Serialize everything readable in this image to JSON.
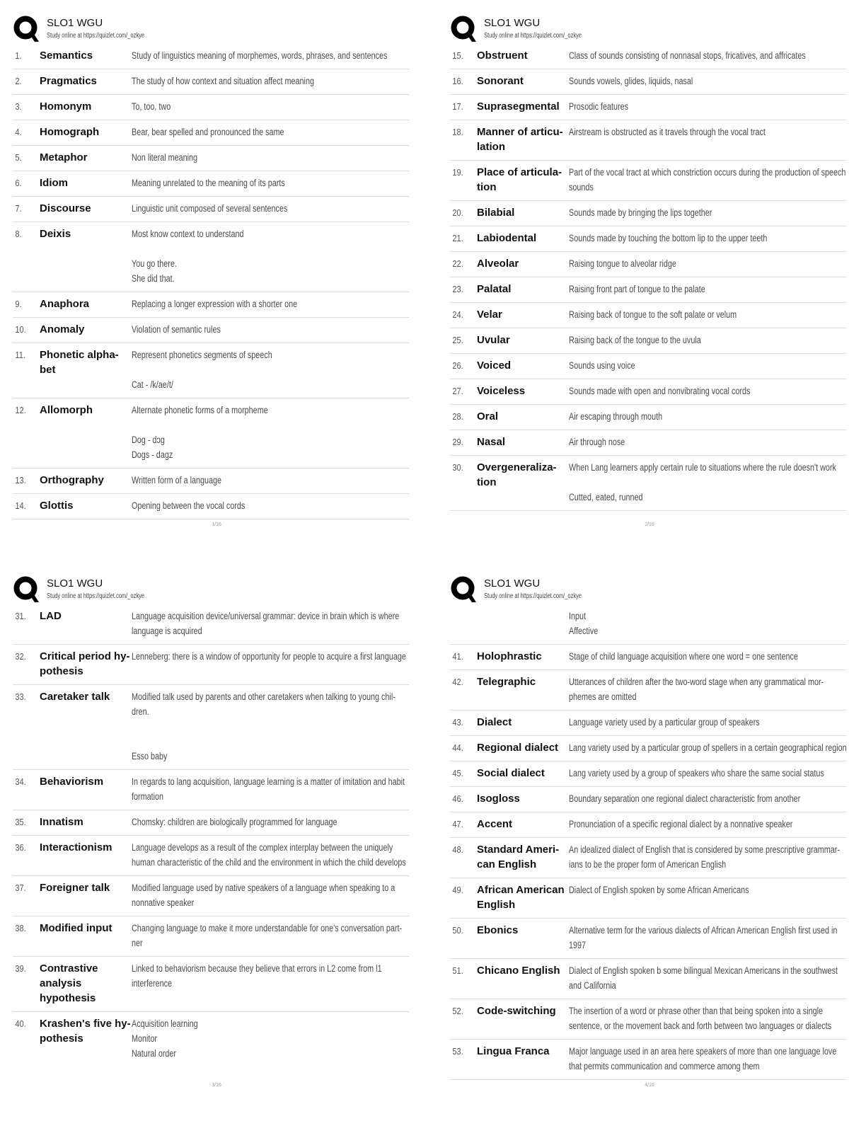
{
  "header": {
    "title": "SLO1 WGU",
    "subtitle": "Study online at https://quizlet.com/_ozkye",
    "logo_icon": "quizlet-q-logo"
  },
  "pages": [
    {
      "page_number": "1/16",
      "cards": [
        {
          "num": "1.",
          "term": [
            "Semantics"
          ],
          "definition": [
            "Study of linguistics meaning of morphemes, words, phrases, and sentences"
          ]
        },
        {
          "num": "2.",
          "term": [
            "Pragmatics"
          ],
          "definition": [
            "The study of how context and situation affect meaning"
          ]
        },
        {
          "num": "3.",
          "term": [
            "Homonym"
          ],
          "definition": [
            "To, too, two"
          ]
        },
        {
          "num": "4.",
          "term": [
            "Homograph"
          ],
          "definition": [
            "Bear, bear spelled and pronounced the same"
          ]
        },
        {
          "num": "5.",
          "term": [
            "Metaphor"
          ],
          "definition": [
            "Non literal meaning"
          ]
        },
        {
          "num": "6.",
          "term": [
            "Idiom"
          ],
          "definition": [
            "Meaning unrelated to the meaning of its parts"
          ]
        },
        {
          "num": "7.",
          "term": [
            "Discourse"
          ],
          "definition": [
            "Linguistic unit composed of several sentences"
          ]
        },
        {
          "num": "8.",
          "term": [
            "Deixis"
          ],
          "definition": [
            "Most know context to understand",
            "",
            "You go there.",
            "She did that."
          ]
        },
        {
          "num": "9.",
          "term": [
            "Anaphora"
          ],
          "definition": [
            "Replacing a longer expression with a shorter one"
          ]
        },
        {
          "num": "10.",
          "term": [
            "Anomaly"
          ],
          "definition": [
            "Violation of semantic rules"
          ]
        },
        {
          "num": "11.",
          "term": [
            "Phonetic alpha-",
            "bet"
          ],
          "definition": [
            "Represent phonetics segments of speech",
            "",
            "Cat - /k/ae/t/"
          ]
        },
        {
          "num": "12.",
          "term": [
            "Allomorph"
          ],
          "definition": [
            "Alternate phonetic forms of a morpheme",
            "",
            "Dog - dɔg",
            "Dogs - dagz"
          ]
        },
        {
          "num": "13.",
          "term": [
            "Orthography"
          ],
          "definition": [
            "Written form of a language"
          ]
        },
        {
          "num": "14.",
          "term": [
            "Glottis"
          ],
          "definition": [
            "Opening between the vocal cords"
          ]
        }
      ]
    },
    {
      "page_number": "2/16",
      "cards": [
        {
          "num": "15.",
          "term": [
            "Obstruent"
          ],
          "definition": [
            "Class of sounds consisting of nonnasal stops, fricatives, and affricates"
          ]
        },
        {
          "num": "16.",
          "term": [
            "Sonorant"
          ],
          "definition": [
            "Sounds vowels, glides, liquids, nasal"
          ]
        },
        {
          "num": "17.",
          "term": [
            "Suprasegmental"
          ],
          "definition": [
            "Prosodic features"
          ]
        },
        {
          "num": "18.",
          "term": [
            "Manner of articu-",
            "lation"
          ],
          "definition": [
            "Airstream is obstructed as it travels through the vocal tract"
          ]
        },
        {
          "num": "19.",
          "term": [
            "Place of articula-",
            "tion"
          ],
          "definition": [
            "Part of the vocal tract at which constriction occurs during the production of speech",
            "sounds"
          ]
        },
        {
          "num": "20.",
          "term": [
            "Bilabial"
          ],
          "definition": [
            "Sounds made by bringing the lips together"
          ]
        },
        {
          "num": "21.",
          "term": [
            "Labiodental"
          ],
          "definition": [
            "Sounds made by touching the bottom lip to the upper teeth"
          ]
        },
        {
          "num": "22.",
          "term": [
            "Alveolar"
          ],
          "definition": [
            "Raising tongue to alveolar ridge"
          ]
        },
        {
          "num": "23.",
          "term": [
            "Palatal"
          ],
          "definition": [
            "Raising front part of tongue to the palate"
          ]
        },
        {
          "num": "24.",
          "term": [
            "Velar"
          ],
          "definition": [
            "Raising back of tongue to the soft palate or velum"
          ]
        },
        {
          "num": "25.",
          "term": [
            "Uvular"
          ],
          "definition": [
            "Raising back of the tongue to the uvula"
          ]
        },
        {
          "num": "26.",
          "term": [
            "Voiced"
          ],
          "definition": [
            "Sounds using voice"
          ]
        },
        {
          "num": "27.",
          "term": [
            "Voiceless"
          ],
          "definition": [
            "Sounds made with open and nonvibrating vocal cords"
          ]
        },
        {
          "num": "28.",
          "term": [
            "Oral"
          ],
          "definition": [
            "Air escaping through mouth"
          ]
        },
        {
          "num": "29.",
          "term": [
            "Nasal"
          ],
          "definition": [
            "Air through nose"
          ]
        },
        {
          "num": "30.",
          "term": [
            "Overgeneraliza-",
            "tion"
          ],
          "definition": [
            "When Lang learners apply certain rule to situations where the rule doesn't work",
            "",
            "Cutted, eated, runned"
          ]
        }
      ]
    },
    {
      "page_number": "3/16",
      "cards": [
        {
          "num": "31.",
          "term": [
            "LAD"
          ],
          "definition": [
            "Language acquisition device/universal grammar: device in brain which is where",
            "language is acquired"
          ]
        },
        {
          "num": "32.",
          "term": [
            "Critical period hy-",
            "pothesis"
          ],
          "definition": [
            "Lenneberg: there is a window of opportunity for people to acquire a first language"
          ]
        },
        {
          "num": "33.",
          "term": [
            "Caretaker talk"
          ],
          "definition": [
            "Modified talk used by parents and other caretakers when talking to young chil-",
            "dren.",
            "",
            "",
            "Esso baby"
          ]
        },
        {
          "num": "34.",
          "term": [
            "Behaviorism"
          ],
          "definition": [
            "In regards to lang acquisition, language learning is a matter of imitation and habit",
            "formation"
          ]
        },
        {
          "num": "35.",
          "term": [
            "Innatism"
          ],
          "definition": [
            "Chomsky: children are biologically programmed for language"
          ]
        },
        {
          "num": "36.",
          "term": [
            "Interactionism"
          ],
          "definition": [
            "Language develops as a result of the complex interplay between the uniquely",
            "human characteristic of the child and the environment in which the child develops"
          ]
        },
        {
          "num": "37.",
          "term": [
            "Foreigner talk"
          ],
          "definition": [
            "Modified language used by native speakers of a language when speaking to a",
            "nonnative speaker"
          ]
        },
        {
          "num": "38.",
          "term": [
            "Modified input"
          ],
          "definition": [
            "Changing language to make it more understandable for one's conversation part-",
            "ner"
          ]
        },
        {
          "num": "39.",
          "term": [
            "Contrastive",
            "analysis",
            "hypothesis"
          ],
          "definition": [
            "Linked to behaviorism because they believe that errors in L2 come from l1",
            "interference"
          ]
        },
        {
          "num": "40.",
          "term": [
            "Krashen's five hy-",
            "pothesis"
          ],
          "definition": [
            "Acquisition learning",
            "Monitor",
            "Natural order"
          ],
          "noborder": true
        }
      ]
    },
    {
      "page_number": "4/16",
      "cards": [
        {
          "num": "",
          "term": [
            ""
          ],
          "definition": [
            "Input",
            "Affective"
          ]
        },
        {
          "num": "41.",
          "term": [
            "Holophrastic"
          ],
          "definition": [
            "Stage of child language acquisition where one word = one sentence"
          ]
        },
        {
          "num": "42.",
          "term": [
            "Telegraphic"
          ],
          "definition": [
            "Utterances of children after the two-word stage when any grammatical mor-",
            "phemes are omitted"
          ]
        },
        {
          "num": "43.",
          "term": [
            "Dialect"
          ],
          "definition": [
            "Language variety used by a particular group of speakers"
          ]
        },
        {
          "num": "44.",
          "term": [
            "Regional dialect"
          ],
          "definition": [
            "Lang variety used by a particular group of spellers in a certain geographical region"
          ]
        },
        {
          "num": "45.",
          "term": [
            "Social dialect"
          ],
          "definition": [
            "Lang variety used by a group of speakers who share the same social status"
          ]
        },
        {
          "num": "46.",
          "term": [
            "Isogloss"
          ],
          "definition": [
            "Boundary separation one regional dialect characteristic from another"
          ]
        },
        {
          "num": "47.",
          "term": [
            "Accent"
          ],
          "definition": [
            "Pronunciation of a specific regional dialect by a nonnative speaker"
          ]
        },
        {
          "num": "48.",
          "term": [
            "Standard Ameri-",
            "can English"
          ],
          "definition": [
            "An idealized dialect of English that is considered by some prescriptive grammar-",
            "ians to be the proper form of American English"
          ]
        },
        {
          "num": "49.",
          "term": [
            "African American",
            "English"
          ],
          "definition": [
            "Dialect of English spoken by some African Americans"
          ]
        },
        {
          "num": "50.",
          "term": [
            "Ebonics"
          ],
          "definition": [
            "Alternative term for the various dialects of African American English first used in",
            "1997"
          ]
        },
        {
          "num": "51.",
          "term": [
            "Chicano English"
          ],
          "definition": [
            "Dialect of English spoken b some bilingual Mexican Americans in the southwest",
            "and California"
          ]
        },
        {
          "num": "52.",
          "term": [
            "Code-switching"
          ],
          "definition": [
            "The insertion of a word or phrase other than that being spoken into a single",
            "sentence, or the movement back and forth between two languages or dialects"
          ]
        },
        {
          "num": "53.",
          "term": [
            "Lingua Franca"
          ],
          "definition": [
            "Major language used in an area here speakers of more than one language love",
            "that permits communication and commerce among them"
          ]
        }
      ]
    }
  ]
}
